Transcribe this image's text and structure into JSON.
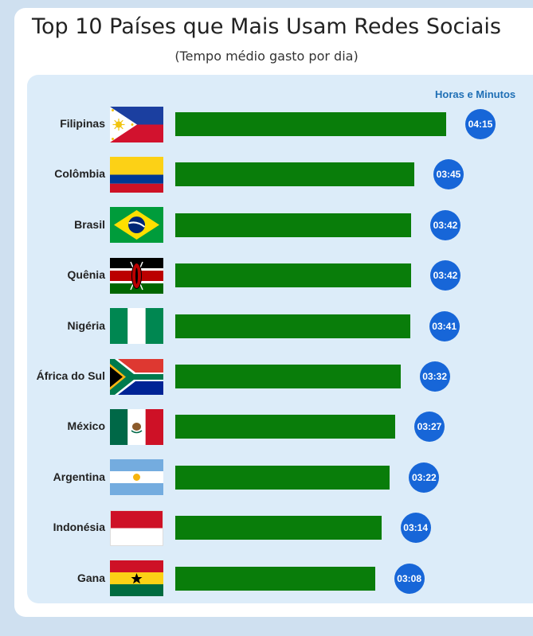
{
  "chart_data": {
    "type": "bar",
    "orientation": "horizontal",
    "title": "Top 10 Países que Mais Usam Redes Sociais",
    "subtitle": "(Tempo médio gasto por dia)",
    "unit_label": "Horas e Minutos",
    "categories": [
      "Filipinas",
      "Colômbia",
      "Brasil",
      "Quênia",
      "Nigéria",
      "África do Sul",
      "México",
      "Argentina",
      "Indonésia",
      "Gana"
    ],
    "values": [
      255,
      225,
      222,
      222,
      221,
      212,
      207,
      202,
      194,
      188
    ],
    "value_labels": [
      "04:15",
      "03:45",
      "03:42",
      "03:42",
      "03:41",
      "03:32",
      "03:27",
      "03:22",
      "03:14",
      "03:08"
    ],
    "value_unit": "minutes",
    "grid": false,
    "legend": "none",
    "colors": {
      "bar": "#097d0a",
      "badge": "#1766d8",
      "unit_label": "#1f6fb5"
    },
    "flags": [
      "philippines-flag",
      "colombia-flag",
      "brazil-flag",
      "kenya-flag",
      "nigeria-flag",
      "south-africa-flag",
      "mexico-flag",
      "argentina-flag",
      "indonesia-flag",
      "ghana-flag"
    ]
  }
}
